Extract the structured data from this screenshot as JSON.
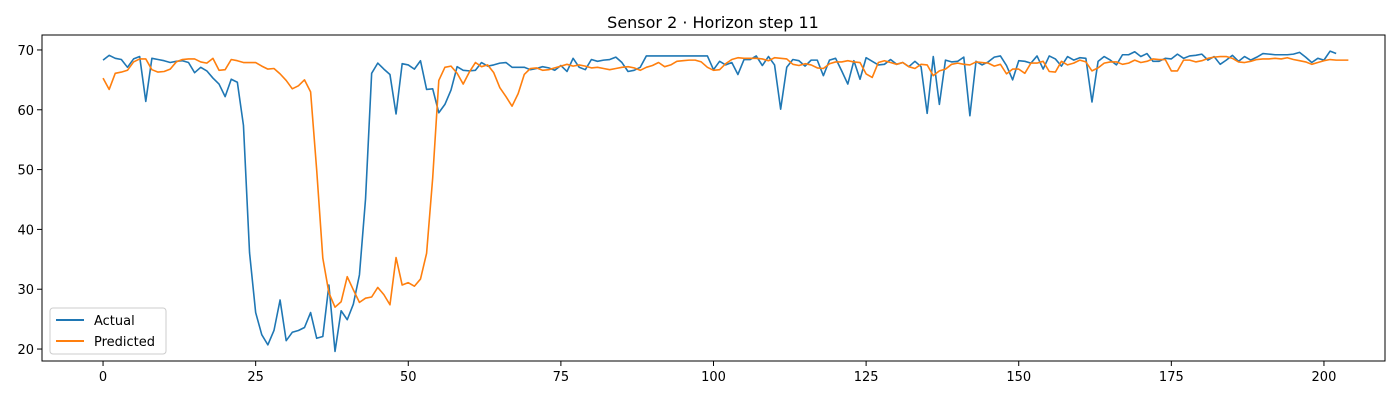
{
  "chart_data": {
    "type": "line",
    "title": "Sensor 2 · Horizon step 11",
    "xlabel": "",
    "ylabel": "",
    "xlim": [
      -10,
      210
    ],
    "ylim": [
      18,
      72.5
    ],
    "xticks": [
      0,
      25,
      50,
      75,
      100,
      125,
      150,
      175,
      200
    ],
    "yticks": [
      20,
      30,
      40,
      50,
      60,
      70
    ],
    "grid": false,
    "legend_position": "lower-left",
    "colors": {
      "Actual": "#1f77b4",
      "Predicted": "#ff7f0e"
    },
    "series": [
      {
        "name": "Actual",
        "values": [
          68.3,
          69.1,
          68.6,
          68.4,
          67.1,
          68.5,
          68.9,
          61.4,
          68.6,
          68.4,
          68.2,
          67.9,
          68.1,
          68.2,
          67.9,
          66.2,
          67.1,
          66.5,
          65.3,
          64.3,
          62.2,
          65.1,
          64.6,
          57.4,
          36.1,
          26.1,
          22.4,
          20.7,
          23.1,
          28.2,
          21.4,
          22.8,
          23.1,
          23.6,
          26.1,
          21.8,
          22.1,
          30.7,
          19.6,
          26.4,
          24.9,
          27.5,
          32.4,
          45.1,
          66.1,
          67.8,
          66.8,
          65.9,
          59.3,
          67.7,
          67.5,
          66.8,
          68.2,
          63.4,
          63.5,
          59.5,
          60.9,
          63.3,
          67.2,
          66.6,
          66.5,
          66.6,
          67.9,
          67.3,
          67.5,
          67.8,
          67.9,
          67.1,
          67.1,
          67.1,
          66.7,
          66.9,
          67.2,
          67.0,
          66.6,
          67.4,
          66.4,
          68.6,
          67.1,
          66.7,
          68.4,
          68.1,
          68.3,
          68.4,
          68.8,
          67.9,
          66.4,
          66.6,
          67.1,
          69.0,
          69.0,
          69.0,
          69.0,
          69.0,
          69.0,
          69.0,
          69.0,
          69.0,
          69.0,
          69.0,
          66.7,
          68.1,
          67.5,
          67.9,
          65.9,
          68.4,
          68.4,
          69.0,
          67.4,
          68.9,
          67.5,
          60.1,
          67.1,
          68.4,
          68.2,
          67.3,
          68.3,
          68.3,
          65.7,
          68.3,
          68.6,
          66.5,
          64.3,
          68.2,
          65.1,
          68.7,
          68.1,
          67.5,
          67.6,
          68.4,
          67.6,
          67.9,
          67.2,
          68.1,
          67.2,
          59.4,
          68.9,
          60.9,
          68.3,
          68.0,
          68.1,
          68.8,
          59.0,
          68.1,
          67.5,
          68.0,
          68.8,
          69.0,
          67.4,
          65.0,
          68.2,
          68.1,
          67.8,
          69.0,
          66.8,
          69.0,
          68.5,
          67.3,
          68.9,
          68.3,
          68.7,
          68.6,
          61.3,
          68.1,
          68.9,
          68.3,
          67.5,
          69.2,
          69.2,
          69.7,
          68.9,
          69.4,
          68.1,
          68.1,
          68.6,
          68.5,
          69.3,
          68.6,
          69.0,
          69.1,
          69.3,
          68.3,
          68.9,
          67.6,
          68.3,
          69.1,
          68.1,
          68.9,
          68.3,
          68.8,
          69.4,
          69.3,
          69.2,
          69.2,
          69.2,
          69.3,
          69.6,
          68.8,
          67.9,
          68.6,
          68.3,
          69.8,
          69.4
        ]
      },
      {
        "name": "Predicted",
        "values": [
          65.3,
          63.4,
          66.1,
          66.3,
          66.6,
          68.0,
          68.5,
          68.5,
          66.7,
          66.3,
          66.4,
          66.8,
          68.0,
          68.4,
          68.5,
          68.5,
          68.0,
          67.8,
          68.6,
          66.6,
          66.7,
          68.4,
          68.2,
          67.9,
          67.9,
          67.9,
          67.3,
          66.8,
          66.9,
          66.0,
          64.9,
          63.5,
          64.0,
          65.0,
          63.0,
          49.9,
          35.2,
          29.4,
          27.0,
          27.9,
          32.1,
          29.9,
          27.8,
          28.5,
          28.7,
          30.3,
          29.1,
          27.4,
          35.3,
          30.7,
          31.1,
          30.5,
          31.7,
          36.0,
          48.6,
          64.9,
          67.1,
          67.3,
          66.1,
          64.3,
          66.3,
          67.9,
          67.2,
          67.5,
          66.2,
          63.7,
          62.2,
          60.6,
          62.7,
          65.9,
          66.9,
          67.0,
          66.6,
          66.7,
          67.0,
          67.3,
          67.6,
          67.3,
          67.5,
          67.3,
          67.0,
          67.1,
          66.9,
          66.7,
          66.9,
          67.1,
          67.2,
          67.0,
          66.6,
          67.1,
          67.4,
          67.9,
          67.2,
          67.5,
          68.1,
          68.2,
          68.3,
          68.3,
          68.0,
          67.1,
          66.6,
          66.7,
          67.7,
          68.4,
          68.7,
          68.6,
          68.6,
          68.6,
          68.5,
          68.2,
          68.7,
          68.6,
          68.5,
          67.6,
          67.4,
          67.7,
          67.5,
          67.0,
          66.9,
          67.7,
          68.0,
          68.0,
          68.2,
          68.0,
          67.9,
          66.0,
          65.4,
          67.9,
          68.2,
          67.9,
          67.6,
          67.9,
          67.2,
          66.9,
          67.6,
          67.5,
          65.7,
          66.5,
          66.8,
          67.6,
          67.8,
          67.6,
          67.5,
          68.0,
          67.9,
          67.8,
          67.3,
          67.6,
          66.0,
          66.8,
          66.8,
          66.1,
          67.8,
          67.8,
          68.1,
          66.4,
          66.3,
          68.1,
          67.5,
          67.8,
          68.3,
          68.0,
          66.5,
          67.0,
          67.8,
          68.0,
          68.0,
          67.6,
          67.8,
          68.3,
          67.9,
          68.1,
          68.5,
          68.4,
          68.4,
          66.5,
          66.5,
          68.3,
          68.3,
          68.0,
          68.2,
          68.6,
          68.8,
          68.9,
          68.9,
          68.6,
          68.0,
          67.9,
          68.1,
          68.4,
          68.5,
          68.5,
          68.6,
          68.5,
          68.7,
          68.4,
          68.2,
          68.0,
          67.6,
          67.9,
          68.2,
          68.4,
          68.3,
          68.3,
          68.3
        ]
      }
    ]
  }
}
